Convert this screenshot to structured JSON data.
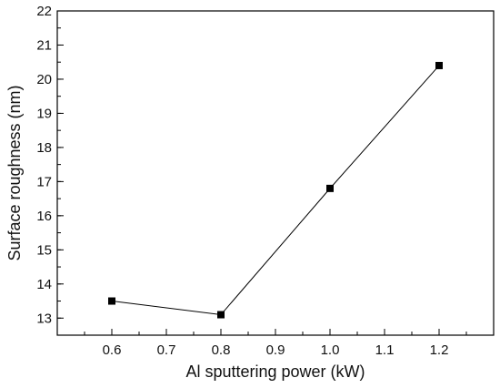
{
  "chart_data": {
    "type": "line",
    "xlabel": "Al sputtering power (kW)",
    "ylabel": "Surface roughness (nm)",
    "xlim": [
      0.5,
      1.3
    ],
    "ylim": [
      12.5,
      22
    ],
    "x_ticks": [
      "0.6",
      "0.7",
      "0.8",
      "0.9",
      "1.0",
      "1.1",
      "1.2"
    ],
    "y_ticks": [
      "13",
      "14",
      "15",
      "16",
      "17",
      "18",
      "19",
      "20",
      "21",
      "22"
    ],
    "grid": false,
    "marker": "square",
    "series": [
      {
        "x": [
          0.6,
          0.8,
          1.0,
          1.2
        ],
        "y": [
          13.5,
          13.1,
          16.8,
          20.4
        ]
      }
    ],
    "colors": {
      "line": "#000000",
      "marker": "#000000"
    }
  }
}
